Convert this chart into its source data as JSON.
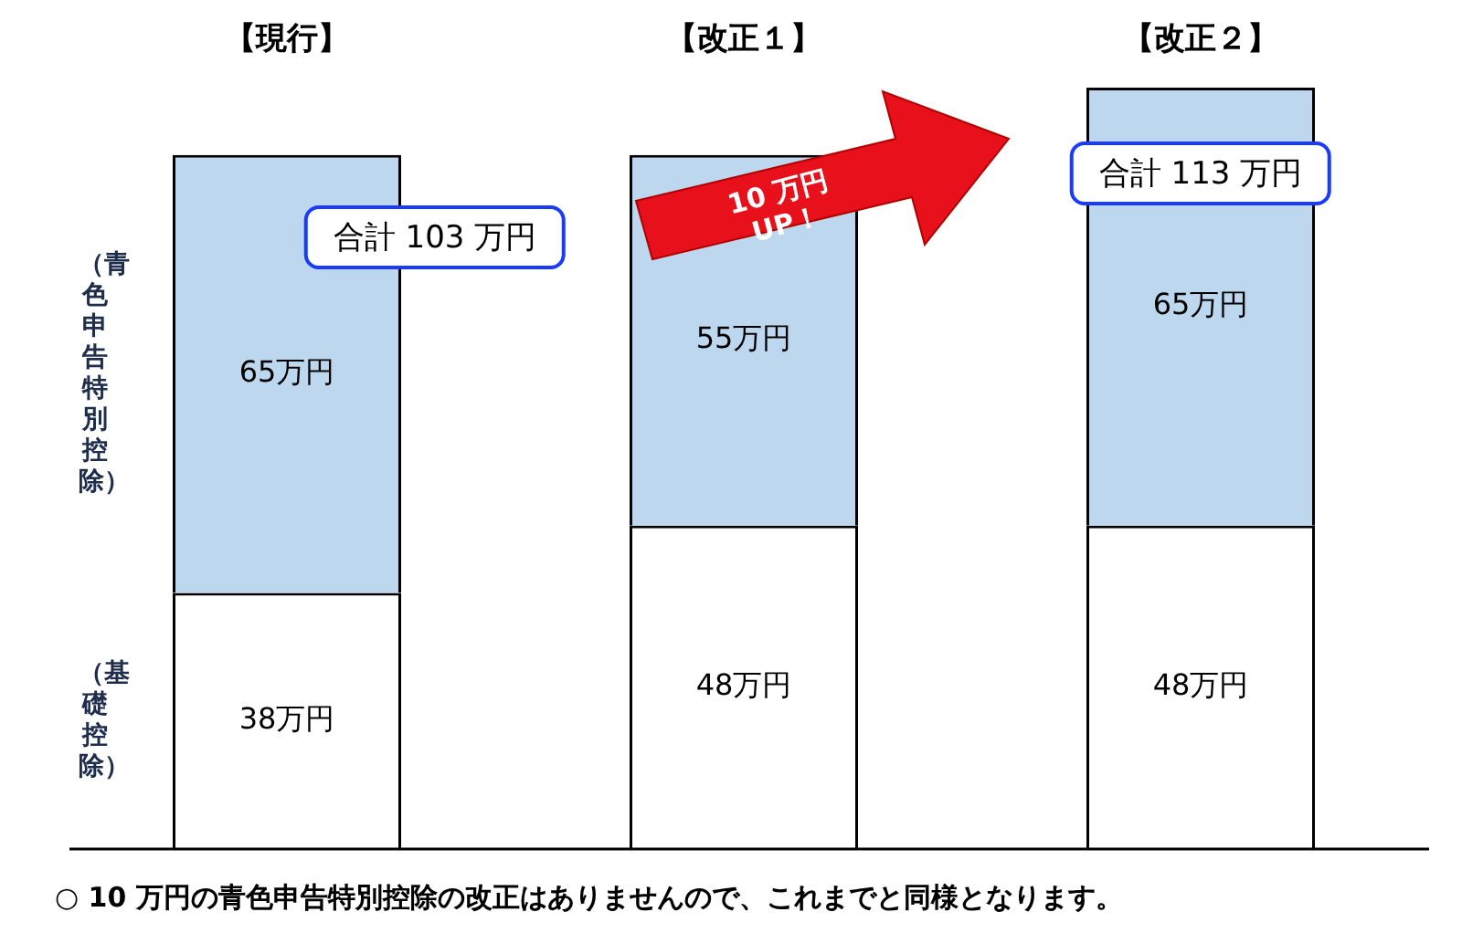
{
  "chart_data": {
    "type": "bar",
    "stacked": true,
    "categories": [
      "【現行】",
      "【改正１】",
      "【改正２】"
    ],
    "ylim": [
      0,
      113
    ],
    "series": [
      {
        "name": "（基礎控除）",
        "color": "#ffffff",
        "values": [
          38,
          48,
          48
        ],
        "value_labels": [
          "38万円",
          "48万円",
          "48万円"
        ]
      },
      {
        "name": "（青色申告特別控除）",
        "color": "#bdd7ee",
        "values": [
          65,
          55,
          65
        ],
        "value_labels": [
          "65万円",
          "55万円",
          "65万円"
        ]
      }
    ],
    "legend": false,
    "annotations": [
      "合計 103 万円",
      "合計 113 万円",
      "10 万円 UP！",
      "○ 10 万円の青色申告特別控除の改正はありませんので、これまでと同様となります。"
    ]
  }
}
